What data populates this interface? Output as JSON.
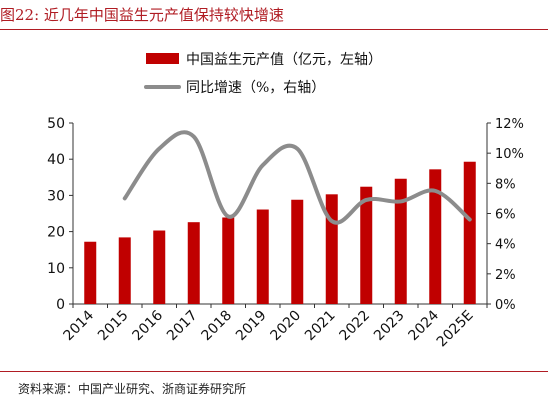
{
  "figure": {
    "title": "图22:   近几年中国益生元产值保持较快增速",
    "source": "资料来源：中国产业研究、浙商证券研究所"
  },
  "colors": {
    "bar": "#c00000",
    "line": "#8c8c8c",
    "title": "#b01c23"
  },
  "chart_data": {
    "type": "bar",
    "categories": [
      "2014",
      "2015",
      "2016",
      "2017",
      "2018",
      "2019",
      "2020",
      "2021",
      "2022",
      "2023",
      "2024",
      "2025E"
    ],
    "series": [
      {
        "name": "中国益生元产值（亿元，左轴）",
        "type": "bar",
        "axis": "left",
        "values": [
          17.2,
          18.4,
          20.3,
          22.6,
          23.9,
          26.1,
          28.8,
          30.3,
          32.4,
          34.6,
          37.2,
          39.3
        ]
      },
      {
        "name": "同比增速（%，右轴）",
        "type": "line",
        "axis": "right",
        "values": [
          null,
          7.0,
          10.3,
          11.1,
          5.8,
          9.2,
          10.3,
          5.5,
          6.9,
          6.8,
          7.5,
          5.6
        ]
      }
    ],
    "yleft": {
      "range": [
        0,
        50
      ],
      "ticks": [
        "0",
        "10",
        "20",
        "30",
        "40",
        "50"
      ]
    },
    "yright": {
      "range": [
        0,
        12
      ],
      "ticks": [
        "0%",
        "2%",
        "4%",
        "6%",
        "8%",
        "10%",
        "12%"
      ]
    },
    "legend": "top",
    "grid": false
  }
}
